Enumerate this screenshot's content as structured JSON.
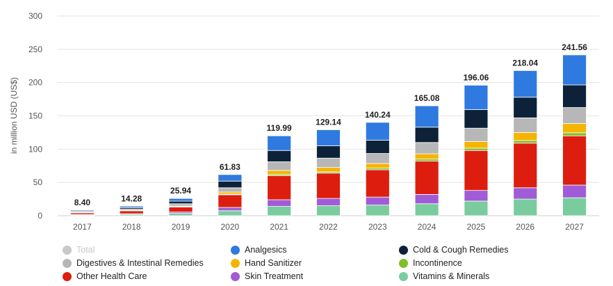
{
  "chart_data": {
    "type": "bar",
    "stacked": true,
    "ylabel": "in million USD (US$)",
    "xlabel": "",
    "ylim": [
      0,
      300
    ],
    "yticks": [
      0,
      50,
      100,
      150,
      200,
      250,
      300
    ],
    "grid": true,
    "legend_position": "bottom",
    "categories": [
      "2017",
      "2018",
      "2019",
      "2020",
      "2021",
      "2022",
      "2023",
      "2024",
      "2025",
      "2026",
      "2027"
    ],
    "totals": [
      "8.40",
      "14.28",
      "25.94",
      "61.83",
      "119.99",
      "129.14",
      "140.24",
      "165.08",
      "196.06",
      "218.04",
      "241.56"
    ],
    "series": [
      {
        "name": "Vitamins & Minerals",
        "color": "#7acc9e",
        "values": [
          1.2,
          2.0,
          3.5,
          7.5,
          14.0,
          15.0,
          16.0,
          18.0,
          22.0,
          25.0,
          27.0
        ]
      },
      {
        "name": "Skin Treatment",
        "color": "#a05cd6",
        "values": [
          0.6,
          1.0,
          2.0,
          5.0,
          10.0,
          11.0,
          12.0,
          14.0,
          16.0,
          17.0,
          19.0
        ]
      },
      {
        "name": "Other Health Care",
        "color": "#dd1e0f",
        "values": [
          2.5,
          4.3,
          7.5,
          19.0,
          36.0,
          38.0,
          41.0,
          50.0,
          60.0,
          67.0,
          74.0
        ]
      },
      {
        "name": "Incontinence",
        "color": "#7fbf2a",
        "values": [
          0.2,
          0.3,
          0.5,
          1.0,
          2.0,
          2.0,
          2.5,
          3.0,
          3.5,
          4.0,
          4.5
        ]
      },
      {
        "name": "Hand Sanitizer",
        "color": "#f5b400",
        "values": [
          0.3,
          0.5,
          1.0,
          3.0,
          6.0,
          6.5,
          7.0,
          8.0,
          10.0,
          12.0,
          14.0
        ]
      },
      {
        "name": "Digestives & Intestinal Remedies",
        "color": "#b7b7b7",
        "values": [
          1.0,
          1.8,
          3.5,
          6.5,
          13.0,
          14.0,
          15.0,
          17.0,
          20.0,
          22.0,
          24.0
        ]
      },
      {
        "name": "Cold & Cough Remedies",
        "color": "#0d2238",
        "values": [
          1.3,
          2.2,
          3.9,
          10.0,
          17.0,
          18.5,
          20.0,
          23.0,
          28.0,
          31.0,
          34.0
        ]
      },
      {
        "name": "Analgesics",
        "color": "#2f7ae0",
        "values": [
          1.3,
          2.18,
          4.04,
          9.83,
          21.99,
          24.14,
          26.74,
          32.08,
          36.56,
          40.04,
          45.06
        ]
      }
    ]
  },
  "legend": [
    {
      "label": "Total",
      "color": "#c8c8c8",
      "dim": true
    },
    {
      "label": "Analgesics",
      "color": "#2f7ae0"
    },
    {
      "label": "Cold & Cough Remedies",
      "color": "#0d2238"
    },
    {
      "label": "Digestives & Intestinal Remedies",
      "color": "#b7b7b7"
    },
    {
      "label": "Hand Sanitizer",
      "color": "#f5b400"
    },
    {
      "label": "Incontinence",
      "color": "#7fbf2a"
    },
    {
      "label": "Other Health Care",
      "color": "#dd1e0f"
    },
    {
      "label": "Skin Treatment",
      "color": "#a05cd6"
    },
    {
      "label": "Vitamins & Minerals",
      "color": "#7acc9e"
    }
  ]
}
